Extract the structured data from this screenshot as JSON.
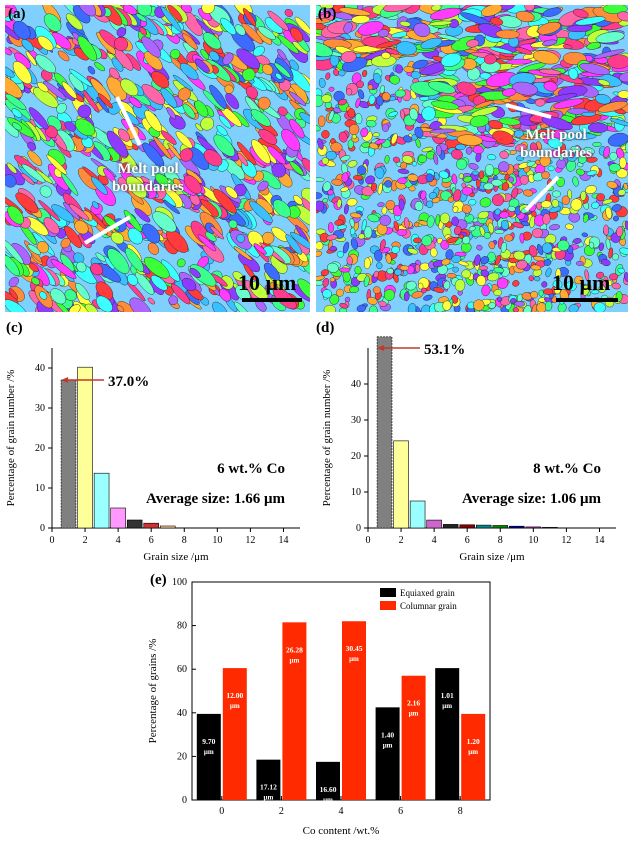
{
  "panels": {
    "a": {
      "label": "(a)",
      "annotation": "Melt pool boundaries",
      "scale": "10 μm"
    },
    "b": {
      "label": "(b)",
      "annotation": "Melt pool boundaries",
      "scale": "10 μm"
    },
    "c": {
      "label": "(c)"
    },
    "d": {
      "label": "(d)"
    },
    "e": {
      "label": "(e)"
    }
  },
  "colors": {
    "bar_c": [
      "#808080",
      "#ffff99",
      "#99ffff",
      "#ff99ff",
      "#333333",
      "#cc3333",
      "#ffcc99"
    ],
    "bar_d": [
      "#808080",
      "#ffff99",
      "#99ffff",
      "#cc66cc",
      "#222222",
      "#880000",
      "#008888",
      "#008800",
      "#000099",
      "#cc33cc",
      "#cc9966"
    ],
    "equiaxed": "#000000",
    "columnar": "#ff2a00",
    "arrow": "#c0392b"
  },
  "chart_data": [
    {
      "type": "bar",
      "panel": "c",
      "xlabel": "Grain size /μm",
      "ylabel": "Percentage of grain number /%",
      "xlim": [
        0,
        15
      ],
      "ylim": [
        0,
        45
      ],
      "xticks": [
        0,
        2,
        4,
        6,
        8,
        10,
        12,
        14
      ],
      "yticks": [
        0,
        10,
        20,
        30,
        40
      ],
      "x": [
        1,
        2,
        3,
        4,
        5,
        6,
        7
      ],
      "values": [
        37.0,
        40.2,
        13.7,
        5.0,
        2.0,
        1.2,
        0.5
      ],
      "annotations": [
        "37.0%",
        "6 wt.% Co",
        "Average size: 1.66 μm"
      ]
    },
    {
      "type": "bar",
      "panel": "d",
      "xlabel": "Grain size /μm",
      "ylabel": "Percentage of grain number /%",
      "xlim": [
        0,
        15
      ],
      "ylim": [
        0,
        50
      ],
      "xticks": [
        0,
        2,
        4,
        6,
        8,
        10,
        12,
        14
      ],
      "yticks": [
        0,
        10,
        20,
        30,
        40
      ],
      "x": [
        1,
        2,
        3,
        4,
        5,
        6,
        7,
        8,
        9,
        10,
        11
      ],
      "values": [
        53.1,
        24.2,
        7.5,
        2.2,
        1.0,
        0.9,
        0.8,
        0.7,
        0.5,
        0.3,
        0.2
      ],
      "annotations": [
        "53.1%",
        "8 wt.% Co",
        "Average size: 1.06 μm"
      ]
    },
    {
      "type": "bar",
      "panel": "e",
      "xlabel": "Co content /wt.%",
      "ylabel": "Percentage of grains /%",
      "ylim": [
        0,
        100
      ],
      "yticks": [
        0,
        20,
        40,
        60,
        80,
        100
      ],
      "categories": [
        "0",
        "2",
        "4",
        "6",
        "8"
      ],
      "series": [
        {
          "name": "Equiaxed grain",
          "values": [
            39.5,
            18.5,
            17.5,
            42.5,
            60.5
          ],
          "labels": [
            "9.70 μm",
            "17.12 μm",
            "16.60 μm",
            "1.40 μm",
            "1.01 μm"
          ]
        },
        {
          "name": "Columnar grain",
          "values": [
            60.5,
            81.5,
            82.0,
            57.0,
            39.5
          ],
          "labels": [
            "12.00 μm",
            "26.28 μm",
            "30.45 μm",
            "2.16 μm",
            "1.20 μm"
          ]
        }
      ],
      "legend": "top-right"
    }
  ]
}
